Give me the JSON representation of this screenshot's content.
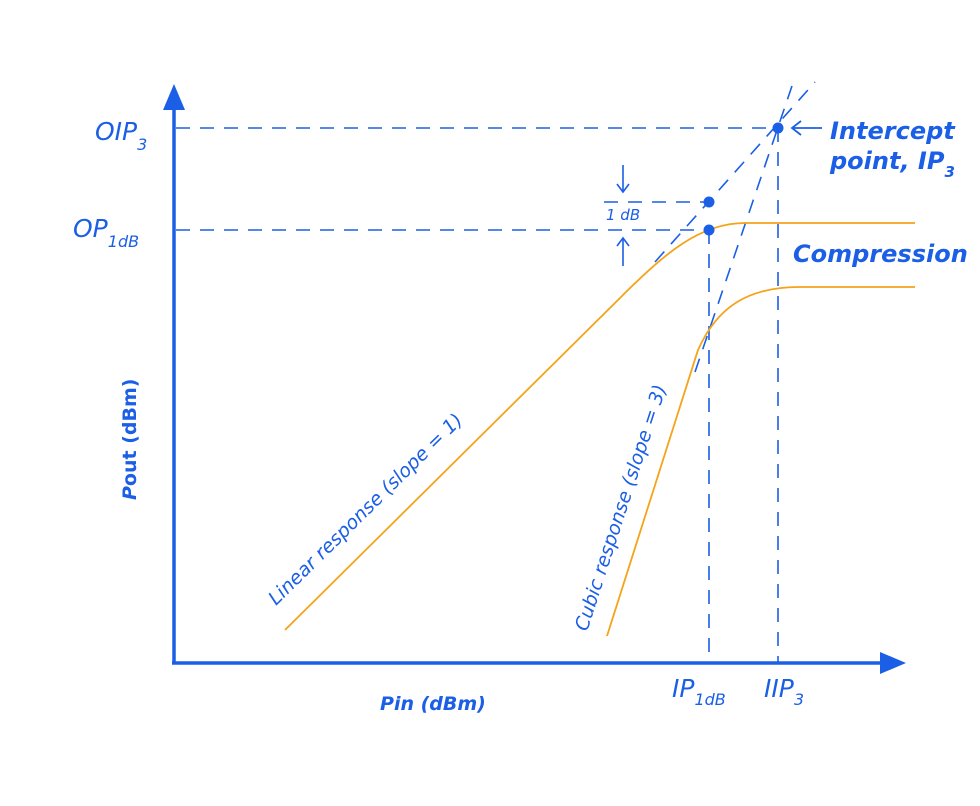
{
  "colors": {
    "primary": "#1b5fe6",
    "curve": "#f5a31a"
  },
  "axes": {
    "y_label_bold": "P",
    "y_label_rest": "out (dBm)",
    "x_label_bold": "P",
    "x_label_rest": "in (dBm)"
  },
  "y_ticks": {
    "oip3": {
      "main": "OIP",
      "sub": "3"
    },
    "op1db": {
      "main": "OP",
      "sub": "1dB"
    }
  },
  "x_ticks": {
    "ip1db": {
      "main": "IP",
      "sub": "1dB"
    },
    "iip3": {
      "main": "IIP",
      "sub": "3"
    }
  },
  "annotations": {
    "one_db": "1 dB",
    "compression": "Compression",
    "intercept_line1": "Intercept",
    "intercept_line2": "point, IP",
    "intercept_sub": "3",
    "linear": "Linear response (slope = 1)",
    "cubic": "Cubic response (slope = 3)"
  }
}
